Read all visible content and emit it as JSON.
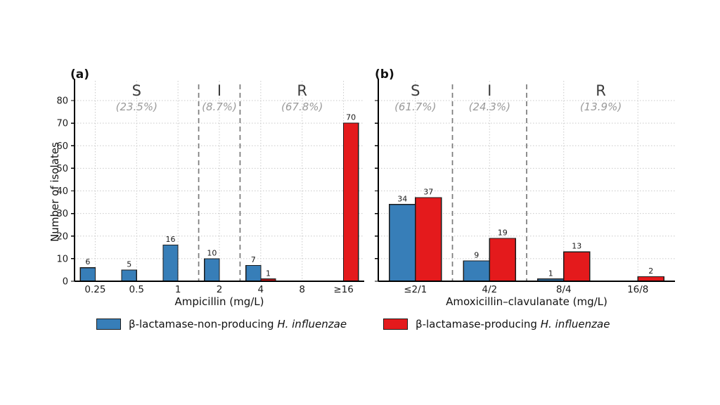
{
  "figure": {
    "ylabel": "Number of isolates",
    "colors": {
      "blue": "#377eb8",
      "red": "#e41a1c",
      "bar_edge": "#1c1c1c",
      "grid": "#c9c9c9",
      "separator": "#7a7a7a",
      "axis": "#000000",
      "zone_letter": "#3c3c3c",
      "zone_pct": "#9a9a9a",
      "value_label": "#1a1a1a"
    },
    "legend": [
      {
        "color": "#377eb8",
        "label": "β-lactamase-non-producing",
        "species": "H. influenzae"
      },
      {
        "color": "#e41a1c",
        "label": "β-lactamase-producing",
        "species": "H. influenzae"
      }
    ]
  },
  "chart_data": [
    {
      "type": "bar",
      "panel": "(a)",
      "title": "",
      "xlabel": "Ampicillin (mg/L)",
      "ylabel": "Number of isolates",
      "ylim": [
        0,
        88
      ],
      "yticks": [
        0,
        10,
        20,
        30,
        40,
        50,
        60,
        70,
        80
      ],
      "grid": true,
      "legend_position": "bottom",
      "categories": [
        "0.25",
        "0.5",
        "1",
        "2",
        "4",
        "8",
        "≥16"
      ],
      "series": [
        {
          "name": "β-lactamase-non-producing H. influenzae",
          "color": "#377eb8",
          "values": [
            6,
            5,
            16,
            10,
            7,
            0,
            0
          ]
        },
        {
          "name": "β-lactamase-producing H. influenzae",
          "color": "#e41a1c",
          "values": [
            0,
            0,
            0,
            0,
            1,
            0,
            70
          ]
        }
      ],
      "separators": [
        3,
        4
      ],
      "zones": [
        {
          "label": "S",
          "pct": "(23.5%)",
          "from": 0,
          "to": 3
        },
        {
          "label": "I",
          "pct": "(8.7%)",
          "from": 3,
          "to": 4
        },
        {
          "label": "R",
          "pct": "(67.8%)",
          "from": 4,
          "to": 7
        }
      ]
    },
    {
      "type": "bar",
      "panel": "(b)",
      "title": "",
      "xlabel": "Amoxicillin–clavulanate (mg/L)",
      "ylabel": "Number of isolates",
      "ylim": [
        0,
        88
      ],
      "yticks": [
        0,
        10,
        20,
        30,
        40,
        50,
        60,
        70,
        80
      ],
      "grid": true,
      "legend_position": "bottom",
      "categories": [
        "≤2/1",
        "4/2",
        "8/4",
        "16/8"
      ],
      "series": [
        {
          "name": "β-lactamase-non-producing H. influenzae",
          "color": "#377eb8",
          "values": [
            34,
            9,
            1,
            0
          ]
        },
        {
          "name": "β-lactamase-producing H. influenzae",
          "color": "#e41a1c",
          "values": [
            37,
            19,
            13,
            2
          ]
        }
      ],
      "separators": [
        1,
        2
      ],
      "zones": [
        {
          "label": "S",
          "pct": "(61.7%)",
          "from": 0,
          "to": 1
        },
        {
          "label": "I",
          "pct": "(24.3%)",
          "from": 1,
          "to": 2
        },
        {
          "label": "R",
          "pct": "(13.9%)",
          "from": 2,
          "to": 4
        }
      ]
    }
  ]
}
